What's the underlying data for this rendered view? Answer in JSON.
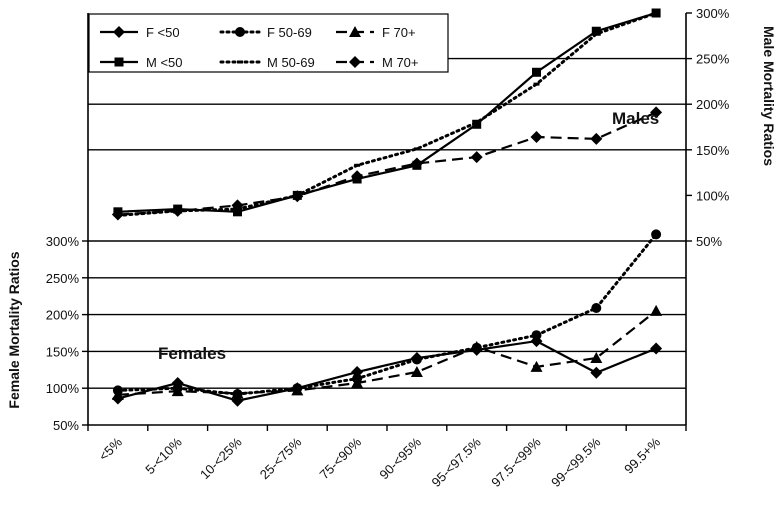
{
  "chart_data": {
    "type": "line",
    "categories": [
      "<5%",
      "5-<10%",
      "10-<25%",
      "25-<75%",
      "75-<90%",
      "90-<95%",
      "95-<97.5%",
      "97.5-<99%",
      "99-<99.5%",
      "99.5+%"
    ],
    "left_axis": {
      "label": "Female Mortality Ratios",
      "ticks": [
        "50%",
        "100%",
        "150%",
        "200%",
        "250%",
        "300%"
      ],
      "range": [
        50,
        300
      ]
    },
    "right_axis": {
      "label": "Male Mortality Ratios",
      "ticks": [
        "50%",
        "100%",
        "150%",
        "200%",
        "250%",
        "300%"
      ],
      "range": [
        50,
        300
      ]
    },
    "annotations": {
      "males": "Males",
      "females": "Females"
    },
    "series": [
      {
        "name": "F <50",
        "group": "female",
        "style": "solid",
        "marker": "diamond",
        "values": [
          86,
          107,
          83,
          100,
          122,
          141,
          152,
          164,
          121,
          154
        ]
      },
      {
        "name": "F 50-69",
        "group": "female",
        "style": "dotted",
        "marker": "circle",
        "values": [
          97,
          100,
          92,
          100,
          113,
          139,
          155,
          172,
          209,
          309
        ]
      },
      {
        "name": "F 70+",
        "group": "female",
        "style": "dashed",
        "marker": "triangle",
        "values": [
          91,
          96,
          93,
          97,
          107,
          122,
          156,
          129,
          141,
          205
        ]
      },
      {
        "name": "M <50",
        "group": "male",
        "style": "solid",
        "marker": "square",
        "values": [
          82,
          85,
          82,
          100,
          118,
          133,
          178,
          235,
          280,
          300
        ]
      },
      {
        "name": "M 50-69",
        "group": "male",
        "style": "dotted",
        "marker": "dash",
        "values": [
          78,
          83,
          85,
          100,
          133,
          151,
          180,
          222,
          277,
          300
        ]
      },
      {
        "name": "M 70+",
        "group": "male",
        "style": "dashed",
        "marker": "diamond",
        "values": [
          79,
          83,
          89,
          99,
          121,
          135,
          142,
          164,
          162,
          191
        ]
      }
    ],
    "legend_position": "top-left",
    "grid": "horizontal"
  }
}
